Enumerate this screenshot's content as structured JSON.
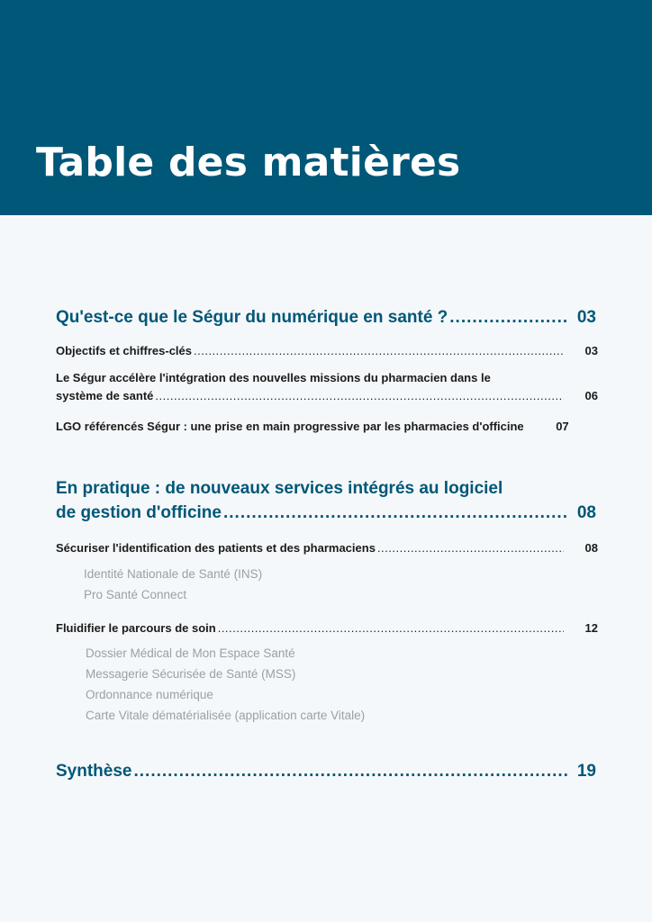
{
  "title": "Table des matières",
  "sections": [
    {
      "heading": "Qu'est-ce que le Ségur du numérique en santé ?",
      "page": "03",
      "entries": [
        {
          "label": "Objectifs et chiffres-clés",
          "page": "03"
        },
        {
          "label_line1": "Le Ségur accélère l'intégration des nouvelles missions du pharmacien dans le",
          "label_line2": "système de santé",
          "page": "06"
        },
        {
          "label": "LGO référencés Ségur : une prise en main progressive par les pharmacies d'officine",
          "page": "07"
        }
      ]
    },
    {
      "heading_line1": "En pratique : de nouveaux services intégrés au logiciel",
      "heading_line2": "de gestion d'officine",
      "page": "08",
      "entries": [
        {
          "label": "Sécuriser l'identification des patients et des pharmaciens",
          "page": "08",
          "items": [
            "Identité Nationale de Santé (INS)",
            "Pro Santé Connect"
          ]
        },
        {
          "label": "Fluidifier le parcours de soin",
          "page": "12",
          "items": [
            "Dossier Médical de Mon Espace Santé",
            "Messagerie Sécurisée de Santé (MSS)",
            "Ordonnance numérique",
            "Carte Vitale dématérialisée (application carte Vitale)"
          ]
        }
      ]
    },
    {
      "heading": "Synthèse",
      "page": "19"
    }
  ]
}
